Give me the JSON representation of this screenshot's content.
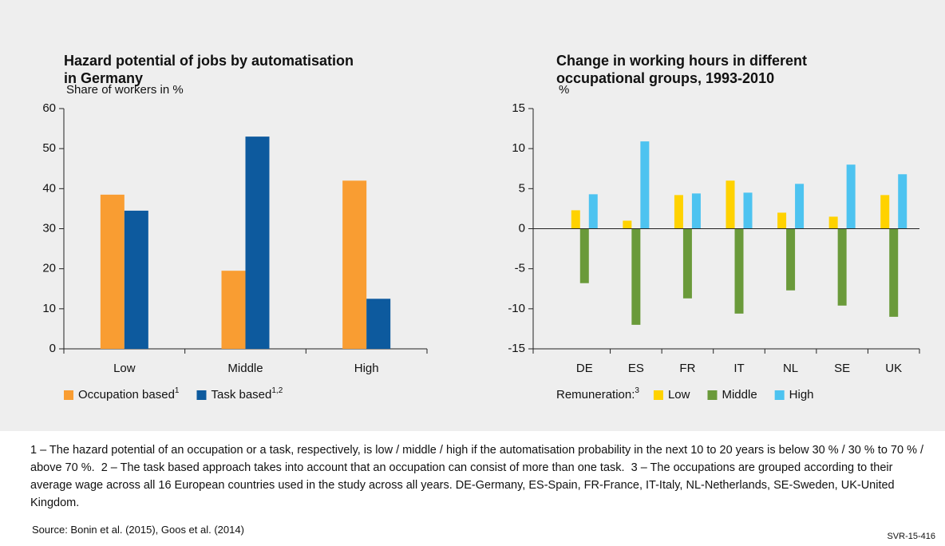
{
  "chart_data": [
    {
      "type": "bar",
      "title": [
        "Hazard potential of jobs by automatisation",
        "in Germany"
      ],
      "ylabel": "Share of workers in %",
      "categories": [
        "Low",
        "Middle",
        "High"
      ],
      "series": [
        {
          "name": "Occupation based",
          "note": "1",
          "color": "#f99d32",
          "values": [
            38.5,
            19.5,
            42
          ]
        },
        {
          "name": "Task based",
          "note": "1,2",
          "color": "#0d5a9e",
          "values": [
            34.5,
            53,
            12.5
          ]
        }
      ],
      "ylim": [
        0,
        60
      ],
      "yticks": [
        0,
        10,
        20,
        30,
        40,
        50,
        60
      ]
    },
    {
      "type": "bar",
      "title": [
        "Change in working hours in different",
        "occupational groups, 1993-2010"
      ],
      "ylabel": "%",
      "legend_title": "Remuneration:",
      "legend_title_note": "3",
      "categories": [
        "DE",
        "ES",
        "FR",
        "IT",
        "NL",
        "SE",
        "UK"
      ],
      "series": [
        {
          "name": "Low",
          "color": "#ffd200",
          "values": [
            2.3,
            1,
            4.2,
            6,
            2,
            1.5,
            4.2
          ]
        },
        {
          "name": "Middle",
          "color": "#6a9a3a",
          "values": [
            -6.8,
            -12,
            -8.7,
            -10.6,
            -7.7,
            -9.6,
            -11
          ]
        },
        {
          "name": "High",
          "color": "#4dc3f0",
          "values": [
            4.3,
            10.9,
            4.4,
            4.5,
            5.6,
            8,
            6.8
          ]
        }
      ],
      "ylim": [
        -15,
        15
      ],
      "yticks": [
        -15,
        -10,
        -5,
        0,
        5,
        10,
        15
      ]
    }
  ],
  "notes": [
    "1 – The hazard potential of an occupation or a task, respectively, is low / middle / high if the automatisation probability in the next 10 to 20 years is below 30 % / 30 % to 70 % / above 70 %.",
    "2 – The task based approach takes into account that an occupation can consist of more than one task.",
    "3 – The occupations are grouped according to their average wage across all 16 European countries used in the study across all years. DE-Germany, ES-Spain, FR-France, IT-Italy, NL-Netherlands, SE-Sweden, UK-United Kingdom."
  ],
  "source": "Source: Bonin et al. (2015), Goos et al. (2014)",
  "code": "SVR-15-416"
}
